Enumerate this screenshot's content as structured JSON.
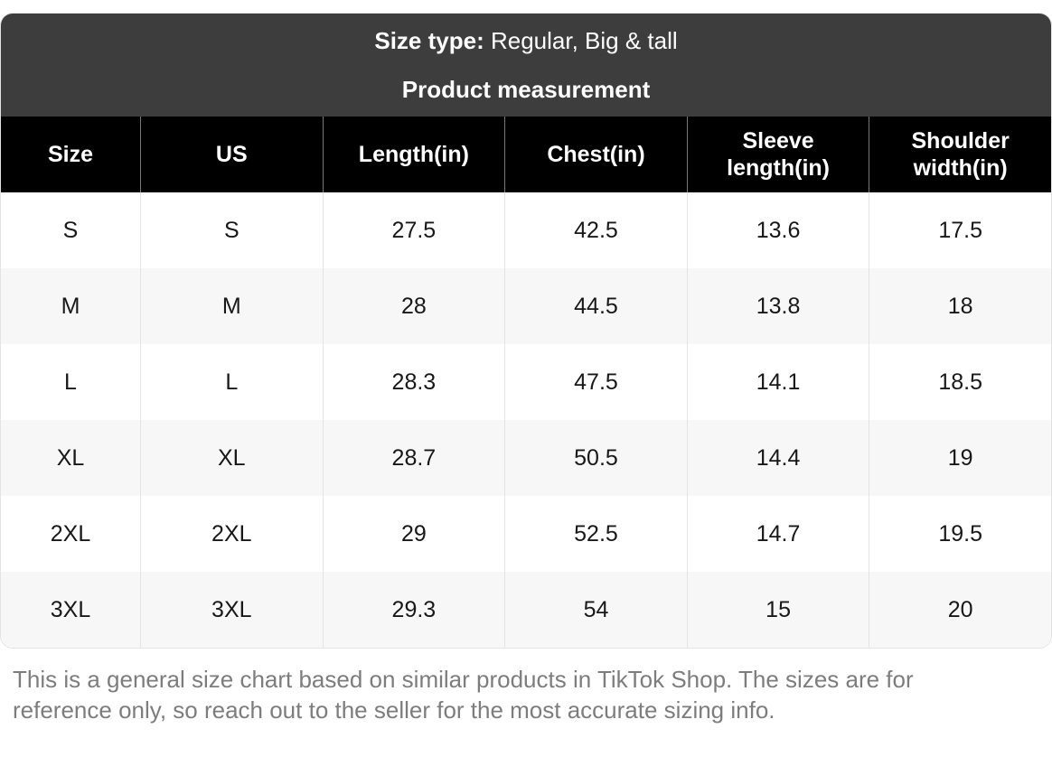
{
  "colors": {
    "panel_header_bg": "#3d3d3d",
    "table_header_bg": "#000000",
    "table_header_text": "#ffffff",
    "row_bg": "#ffffff",
    "row_alt_bg": "#f7f7f7",
    "divider": "#e4e4e4",
    "footer_text": "#7d7d7d"
  },
  "panel_header": {
    "size_type_label": "Size type:",
    "size_type_value": "Regular, Big & tall",
    "subtitle": "Product measurement"
  },
  "table": {
    "columns": [
      "Size",
      "US",
      "Length(in)",
      "Chest(in)",
      "Sleeve length(in)",
      "Shoulder width(in)"
    ],
    "rows": [
      {
        "size": "S",
        "us": "S",
        "length": "27.5",
        "chest": "42.5",
        "sleeve_length": "13.6",
        "shoulder_width": "17.5"
      },
      {
        "size": "M",
        "us": "M",
        "length": "28",
        "chest": "44.5",
        "sleeve_length": "13.8",
        "shoulder_width": "18"
      },
      {
        "size": "L",
        "us": "L",
        "length": "28.3",
        "chest": "47.5",
        "sleeve_length": "14.1",
        "shoulder_width": "18.5"
      },
      {
        "size": "XL",
        "us": "XL",
        "length": "28.7",
        "chest": "50.5",
        "sleeve_length": "14.4",
        "shoulder_width": "19"
      },
      {
        "size": "2XL",
        "us": "2XL",
        "length": "29",
        "chest": "52.5",
        "sleeve_length": "14.7",
        "shoulder_width": "19.5"
      },
      {
        "size": "3XL",
        "us": "3XL",
        "length": "29.3",
        "chest": "54",
        "sleeve_length": "15",
        "shoulder_width": "20"
      }
    ]
  },
  "footer": {
    "disclaimer": "This is a general size chart based on similar products in TikTok Shop. The sizes are for reference only, so reach out to the seller for the most accurate sizing info."
  }
}
